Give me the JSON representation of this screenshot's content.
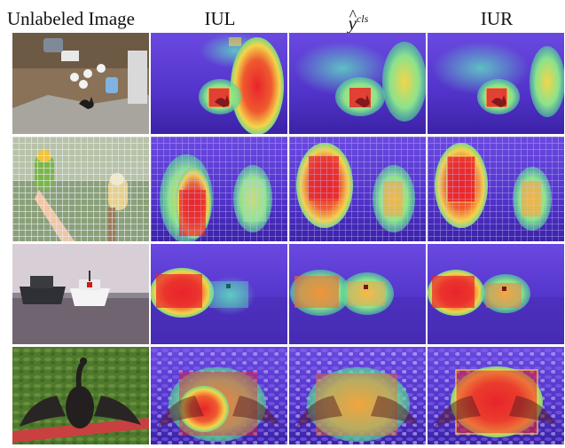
{
  "columns": {
    "unlabeled": "Unlabeled Image",
    "iul": "IUL",
    "ycls_base": "y",
    "ycls_hat": "^",
    "ycls_sup": "cls",
    "iur": "IUR"
  },
  "rows": [
    {
      "subject": "cat in garden yard",
      "cam_boxes": 1
    },
    {
      "subject": "two parrots in wire cage",
      "cam_boxes": 2
    },
    {
      "subject": "ships on harbor water",
      "cam_boxes": 2
    },
    {
      "subject": "cormorant spreading wings",
      "cam_boxes": 1
    }
  ],
  "colors": {
    "heat_hot": "#e8242c",
    "heat_warm": "#f3d54a",
    "heat_mid": "#4fd39b",
    "heat_cool": "#5a3fd8",
    "heat_cold": "#3a1f9e",
    "box_border": "#c81b25"
  }
}
